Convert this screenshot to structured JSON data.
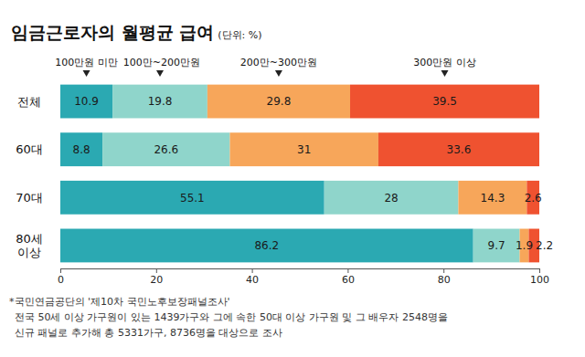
{
  "chart_data": {
    "type": "bar",
    "orientation": "horizontal",
    "stacked": true,
    "data_labels": true,
    "grid": false,
    "legend": "top",
    "title": "임금근로자의 월평균 급여",
    "subtitle": "(단위: %)",
    "categories": [
      "전체",
      "60대",
      "70대",
      "80세 이상"
    ],
    "series": [
      {
        "name": "100만원 미만",
        "color": "#2ba9b2",
        "values": [
          10.9,
          8.8,
          55.1,
          86.2
        ]
      },
      {
        "name": "100만~200만원",
        "color": "#8fd5cb",
        "values": [
          19.8,
          26.6,
          28,
          9.7
        ]
      },
      {
        "name": "200만~300만원",
        "color": "#f7a65a",
        "values": [
          29.8,
          31,
          14.3,
          1.9
        ]
      },
      {
        "name": "300만원 이상",
        "color": "#ef5230",
        "values": [
          39.5,
          33.6,
          2.6,
          2.2
        ]
      }
    ],
    "xlim": [
      0,
      100
    ],
    "xticks": [
      0,
      20,
      40,
      60,
      80,
      100
    ],
    "annotations": [
      "*국민연금공단의 '제10차 국민노후보장패널조사'",
      "전국 50세 이상 가구원이 있는 1439가구와 그에 속한 50대 이상 가구원 및 그 배우자 2548명을",
      "신규 패널로 추가해 총 5331가구, 8736명을 대상으로 조사"
    ]
  }
}
